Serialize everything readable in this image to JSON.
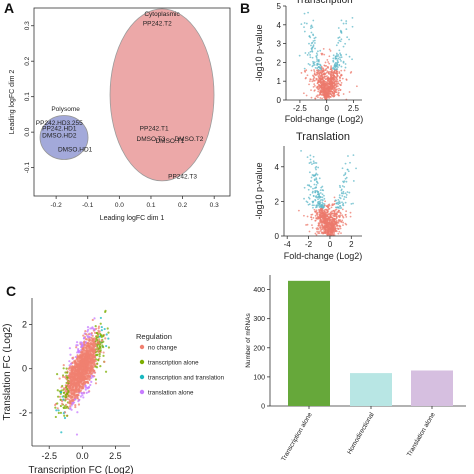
{
  "panels": {
    "a": "A",
    "b": "B",
    "c": "C"
  },
  "panel_a": {
    "xlabel": "Leading logFC dim 1",
    "ylabel": "Leading logFC dim 2",
    "cytoplasmic_label": "Cytoplasmic",
    "polysome_label": "Polysome",
    "cyto_color": "#e99a9a",
    "poly_color": "#9aa0d6",
    "chart_data": {
      "type": "scatter",
      "xlim": [
        -0.27,
        0.35
      ],
      "ylim": [
        -0.18,
        0.35
      ],
      "x_ticks": [
        "-0.2",
        "-0.1",
        "0.0",
        "0.1",
        "0.2",
        "0.3"
      ],
      "y_ticks": [
        "-0.1",
        "0.0",
        "0.1",
        "0.2",
        "0.3"
      ],
      "sample_labels": [
        {
          "text": "PP242.T2",
          "x": 0.12,
          "y": 0.3
        },
        {
          "text": "PP242.HD3.255",
          "x": -0.19,
          "y": 0.02
        },
        {
          "text": "PP242.HD1",
          "x": -0.19,
          "y": 0.005
        },
        {
          "text": "DMSO.HD2",
          "x": -0.19,
          "y": -0.015
        },
        {
          "text": "DMSO.HD1",
          "x": -0.14,
          "y": -0.055
        },
        {
          "text": "PP242.T1",
          "x": 0.11,
          "y": 0.005
        },
        {
          "text": "DMSO.T3",
          "x": 0.1,
          "y": -0.025
        },
        {
          "text": "DMSO.T1",
          "x": 0.16,
          "y": -0.03
        },
        {
          "text": "DMSO.T2",
          "x": 0.22,
          "y": -0.025
        },
        {
          "text": "PP242.T3",
          "x": 0.2,
          "y": -0.13
        }
      ]
    }
  },
  "panel_b_top": {
    "title": "Transcription",
    "xlabel": "Fold-change (Log2)",
    "ylabel": "-log10 p-value",
    "chart_data": {
      "type": "scatter",
      "xlim": [
        -3.8,
        3.3
      ],
      "ylim": [
        0,
        5
      ],
      "x_ticks": [
        "-2.5",
        "0",
        "2.5"
      ],
      "y_ticks": [
        "0",
        "1",
        "2",
        "3",
        "4",
        "5"
      ]
    }
  },
  "panel_b_bottom": {
    "title": "Translation",
    "xlabel": "Fold-change (Log2)",
    "ylabel": "-log10 p-value",
    "chart_data": {
      "type": "scatter",
      "xlim": [
        -4.3,
        3.0
      ],
      "ylim": [
        0,
        5.2
      ],
      "x_ticks": [
        "-4",
        "-2",
        "0",
        "2"
      ],
      "y_ticks": [
        "0",
        "2",
        "4"
      ]
    }
  },
  "panel_c": {
    "xlabel": "Transcription FC (Log2)",
    "ylabel": "Translation FC (Log2)",
    "legend_title": "Regulation",
    "legend": [
      {
        "label": "no change",
        "color": "#f08070"
      },
      {
        "label": "transcription alone",
        "color": "#7cae00"
      },
      {
        "label": "transcription and translation",
        "color": "#1ab8c0"
      },
      {
        "label": "translation alone",
        "color": "#c77cff"
      }
    ],
    "chart_data": {
      "type": "scatter",
      "xlim": [
        -3.8,
        3.6
      ],
      "ylim": [
        -3.5,
        3.2
      ],
      "x_ticks": [
        "-2.5",
        "0.0",
        "2.5"
      ],
      "y_ticks": [
        "-2",
        "0",
        "2"
      ]
    }
  },
  "bar_chart": {
    "chart_data": {
      "type": "bar",
      "ylabel": "Number of mRNAs",
      "categories": [
        "Transcription alone",
        "Homodirectional",
        "Translation alone"
      ],
      "values": [
        430,
        113,
        122
      ],
      "colors": [
        "#66a83a",
        "#b8e6e4",
        "#d6bfe0"
      ],
      "ylim": [
        0,
        450
      ],
      "y_ticks": [
        "0",
        "100",
        "200",
        "300",
        "400"
      ]
    }
  }
}
